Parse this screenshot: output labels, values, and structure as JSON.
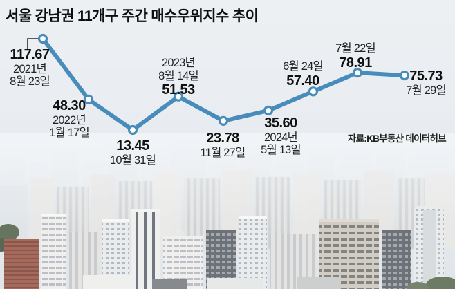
{
  "title": {
    "prefix": "서울 강남권 11개구 주간 ",
    "emphasis": "매수우위지수",
    "suffix": " 추이"
  },
  "source": "자료:KB부동산 데이터허브",
  "colors": {
    "line": "#478cba",
    "marker_fill": "#ffffff",
    "connector": "#2a2a2a",
    "value_text": "#101010",
    "date_text": "#242424",
    "sky": "#e9edf1"
  },
  "chart_data": {
    "type": "line",
    "title": "서울 강남권 11개구 주간 매수우위지수 추이",
    "series_name": "매수우위지수",
    "categories": [
      "2021년 8월 23일",
      "2022년 1월 17일",
      "10월 31일",
      "2023년 8월 14일",
      "11월 27일",
      "2024년 5월 13일",
      "6월 24일",
      "7월 22일",
      "7월 29일"
    ],
    "values": [
      117.67,
      48.3,
      13.45,
      51.53,
      23.78,
      35.6,
      57.4,
      78.91,
      75.73
    ],
    "ylim": [
      0,
      130
    ],
    "grid": false,
    "legend": "none",
    "point_labels": [
      {
        "value": "117.67",
        "date_lines": [
          "2021년",
          "8월 23일"
        ]
      },
      {
        "value": "48.30",
        "date_lines": [
          "2022년",
          "1월 17일"
        ]
      },
      {
        "value": "13.45",
        "date_lines": [
          "10월 31일"
        ]
      },
      {
        "value": "51.53",
        "date_lines": [
          "2023년",
          "8월 14일"
        ]
      },
      {
        "value": "23.78",
        "date_lines": [
          "11월 27일"
        ]
      },
      {
        "value": "35.60",
        "date_lines": [
          "2024년",
          "5월 13일"
        ]
      },
      {
        "value": "57.40",
        "date_lines": [
          "6월 24일"
        ]
      },
      {
        "value": "78.91",
        "date_lines": [
          "7월 22일"
        ]
      },
      {
        "value": "75.73",
        "date_lines": [
          "7월 29일"
        ]
      }
    ],
    "source": "자료:KB부동산 데이터허브"
  }
}
